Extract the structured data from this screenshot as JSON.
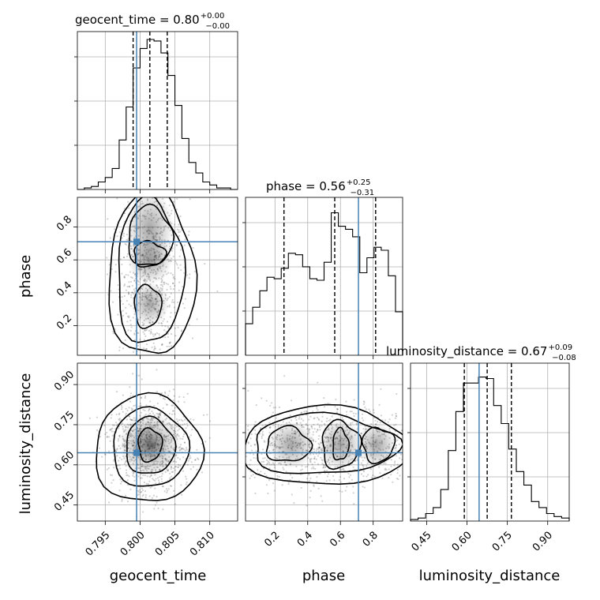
{
  "chart_data": {
    "type": "corner",
    "parameters": [
      "geocent_time",
      "phase",
      "luminosity_distance"
    ],
    "axis_labels": {
      "x": [
        "geocent_time",
        "phase",
        "luminosity_distance"
      ],
      "y": [
        "phase",
        "luminosity_distance"
      ]
    },
    "titles": [
      {
        "parameter": "geocent_time",
        "prefix": "geocent_time = 0.80",
        "upper": "+0.00",
        "lower": "−0.00",
        "median": 0.8014,
        "q16": 0.799,
        "q84": 0.8039
      },
      {
        "parameter": "phase",
        "prefix": "phase = 0.56",
        "upper": "+0.25",
        "lower": "−0.31",
        "median": 0.565,
        "q16": 0.255,
        "q84": 0.815
      },
      {
        "parameter": "luminosity_distance",
        "prefix": "luminosity_distance = 0.67",
        "upper": "+0.09",
        "lower": "−0.08",
        "median": 0.675,
        "q16": 0.59,
        "q84": 0.765
      }
    ],
    "truths": {
      "geocent_time": 0.7995,
      "phase": 0.71,
      "luminosity_distance": 0.645
    },
    "ranges": {
      "geocent_time": [
        0.791,
        0.814
      ],
      "phase": [
        0.02,
        0.98
      ],
      "luminosity_distance": [
        0.39,
        0.98
      ]
    },
    "ticks": {
      "geocent_time": {
        "values": [
          0.795,
          0.8,
          0.805,
          0.81
        ],
        "labels": [
          "0.795",
          "0.800",
          "0.805",
          "0.810"
        ]
      },
      "phase": {
        "values": [
          0.2,
          0.4,
          0.6,
          0.8
        ],
        "labels": [
          "0.2",
          "0.4",
          "0.6",
          "0.8"
        ]
      },
      "luminosity_distance": {
        "values": [
          0.45,
          0.6,
          0.75,
          0.9
        ],
        "labels": [
          "0.45",
          "0.60",
          "0.75",
          "0.90"
        ]
      }
    },
    "histograms": {
      "geocent_time": [
        0.0,
        0.01,
        0.02,
        0.05,
        0.08,
        0.14,
        0.33,
        0.55,
        0.81,
        0.94,
        1.0,
        0.99,
        0.91,
        0.76,
        0.56,
        0.34,
        0.18,
        0.11,
        0.05,
        0.03,
        0.01,
        0.01,
        0.0
      ],
      "phase": [
        0.21,
        0.32,
        0.43,
        0.52,
        0.51,
        0.58,
        0.68,
        0.67,
        0.59,
        0.51,
        0.5,
        0.62,
        0.95,
        0.86,
        0.84,
        0.79,
        0.55,
        0.65,
        0.72,
        0.7,
        0.53,
        0.29
      ],
      "luminosity_distance": [
        0.01,
        0.02,
        0.05,
        0.09,
        0.21,
        0.47,
        0.73,
        0.92,
        0.92,
        0.96,
        0.95,
        0.77,
        0.65,
        0.48,
        0.33,
        0.24,
        0.13,
        0.09,
        0.05,
        0.03,
        0.02
      ]
    },
    "contour_levels": [
      "0.5σ",
      "1σ",
      "1.5σ",
      "2σ"
    ],
    "grid": true,
    "colors": {
      "truth": "#4682b4",
      "contour": "#000000",
      "density": "#000000",
      "grid": "#b0b0b0"
    }
  }
}
